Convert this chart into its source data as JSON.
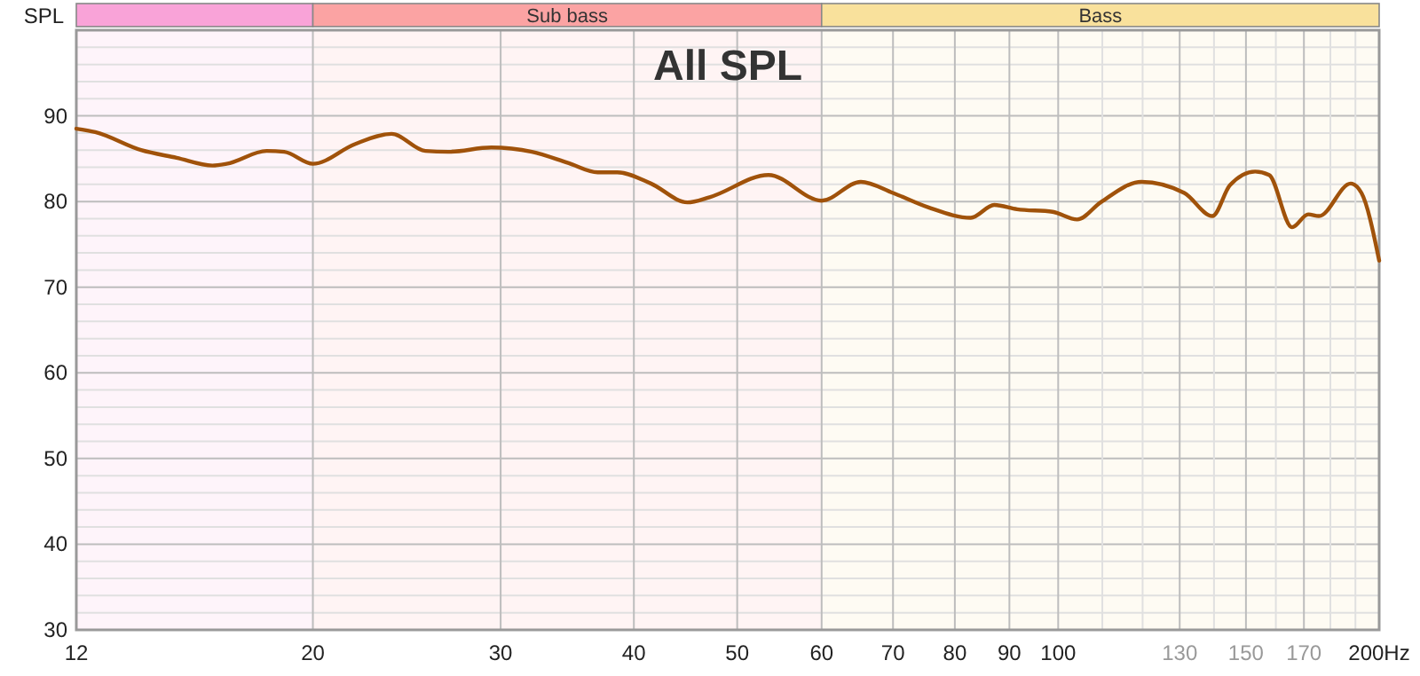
{
  "chart_data": {
    "type": "line",
    "title": "All SPL",
    "ylabel": "SPL",
    "log": "x",
    "grid": true,
    "xlim": [
      12,
      200
    ],
    "ylim": [
      30,
      100
    ],
    "xticks": [
      12,
      20,
      30,
      40,
      50,
      60,
      70,
      80,
      90,
      100,
      {
        "value": 110,
        "label": null
      },
      {
        "value": 120,
        "label": null
      },
      130,
      {
        "value": 140,
        "label": null
      },
      150,
      {
        "value": 160,
        "label": null
      },
      170,
      {
        "value": 180,
        "label": null
      },
      {
        "value": 190,
        "label": null
      },
      {
        "value": 200,
        "label": "200Hz"
      }
    ],
    "yticks": [
      30,
      {
        "value": 32,
        "label": null
      },
      {
        "value": 34,
        "label": null
      },
      {
        "value": 36,
        "label": null
      },
      {
        "value": 38,
        "label": null
      },
      40,
      {
        "value": 42,
        "label": null
      },
      {
        "value": 44,
        "label": null
      },
      {
        "value": 46,
        "label": null
      },
      {
        "value": 48,
        "label": null
      },
      50,
      {
        "value": 52,
        "label": null
      },
      {
        "value": 54,
        "label": null
      },
      {
        "value": 56,
        "label": null
      },
      {
        "value": 58,
        "label": null
      },
      60,
      {
        "value": 62,
        "label": null
      },
      {
        "value": 64,
        "label": null
      },
      {
        "value": 66,
        "label": null
      },
      {
        "value": 68,
        "label": null
      },
      70,
      {
        "value": 72,
        "label": null
      },
      {
        "value": 74,
        "label": null
      },
      {
        "value": 76,
        "label": null
      },
      {
        "value": 78,
        "label": null
      },
      80,
      {
        "value": 82,
        "label": null
      },
      {
        "value": 84,
        "label": null
      },
      {
        "value": 86,
        "label": null
      },
      {
        "value": 88,
        "label": null
      },
      90,
      {
        "value": 92,
        "label": null
      },
      {
        "value": 94,
        "label": null
      },
      {
        "value": 96,
        "label": null
      },
      {
        "value": 98,
        "label": null
      },
      {
        "value": 100,
        "label": null
      }
    ],
    "bands": [
      {
        "axis": "x",
        "from": 12,
        "to": 20,
        "label": null,
        "color": "#f9a3d8"
      },
      {
        "axis": "x",
        "from": 20,
        "to": 60,
        "label": "Sub bass",
        "color": "#fba3a3"
      },
      {
        "axis": "x",
        "from": 60,
        "to": 200,
        "label": "Bass",
        "color": "#f9e19c"
      }
    ],
    "series": [
      {
        "color": "#a0520a",
        "x": [
          12,
          12.5,
          13.8,
          14.9,
          16.1,
          16.6,
          18.1,
          18.8,
          20,
          21.9,
          23.7,
          25.5,
          26.8,
          29.4,
          32.1,
          34.7,
          37.0,
          38.6,
          41.5,
          44.9,
          47.1,
          53.5,
          60.0,
          65.3,
          70.0,
          75.6,
          82.8,
          87.1,
          91.5,
          98.8,
          104.2,
          109.6,
          119.7,
          131.3,
          139.5,
          144.9,
          153.0,
          157.7,
          165.7,
          171.6,
          175.6,
          188.1,
          192.5,
          200
        ],
        "values": [
          88.5,
          88.1,
          86.0,
          85.1,
          84.2,
          84.4,
          85.9,
          85.8,
          84.4,
          86.7,
          87.9,
          85.9,
          85.8,
          86.3,
          85.8,
          84.5,
          83.4,
          83.4,
          82.1,
          79.9,
          80.5,
          83.1,
          80.1,
          82.3,
          81.0,
          79.3,
          78.1,
          79.6,
          79.1,
          78.8,
          77.9,
          79.9,
          82.3,
          81.0,
          78.3,
          81.9,
          83.5,
          83.1,
          77.0,
          78.5,
          78.3,
          82.1,
          81.0,
          73.1
        ]
      }
    ]
  }
}
